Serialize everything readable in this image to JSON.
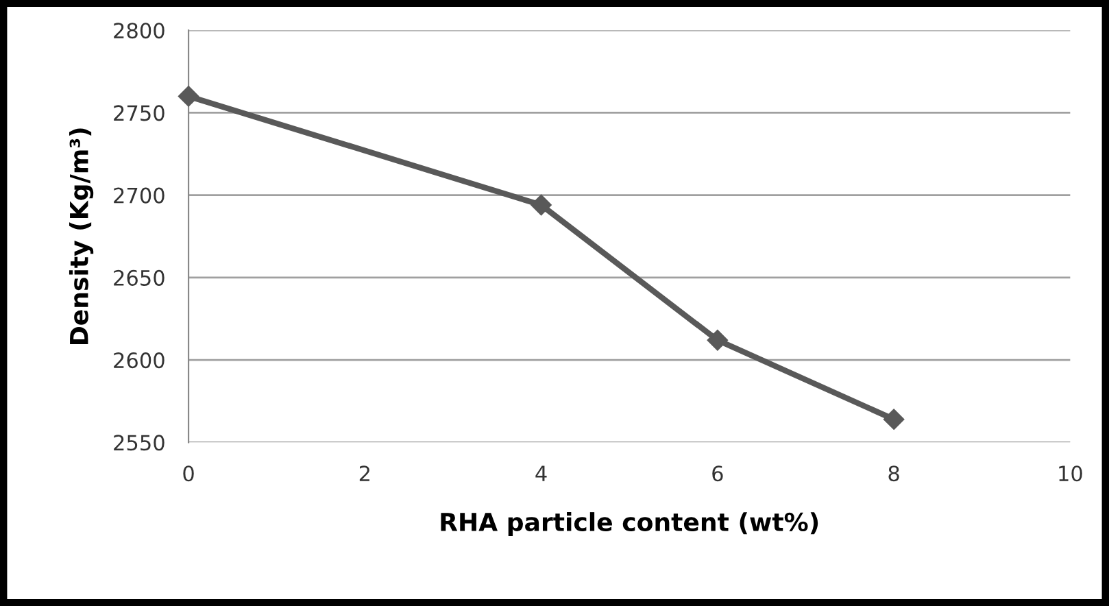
{
  "chart_data": {
    "type": "line",
    "xlabel": "RHA particle content (wt%)",
    "ylabel": "Density (Kg/m³)",
    "x": [
      0,
      4,
      6,
      8
    ],
    "series": [
      {
        "color": "#595959",
        "values": [
          2760,
          2694,
          2612,
          2564
        ]
      }
    ],
    "xlim": [
      0,
      10
    ],
    "xticks": [
      0,
      2,
      4,
      6,
      8,
      10
    ],
    "ylim": [
      2550,
      2800
    ],
    "yticks": [
      2550,
      2600,
      2650,
      2700,
      2750,
      2800
    ],
    "grid": "y",
    "marker": "diamond",
    "line_style": "solid"
  }
}
